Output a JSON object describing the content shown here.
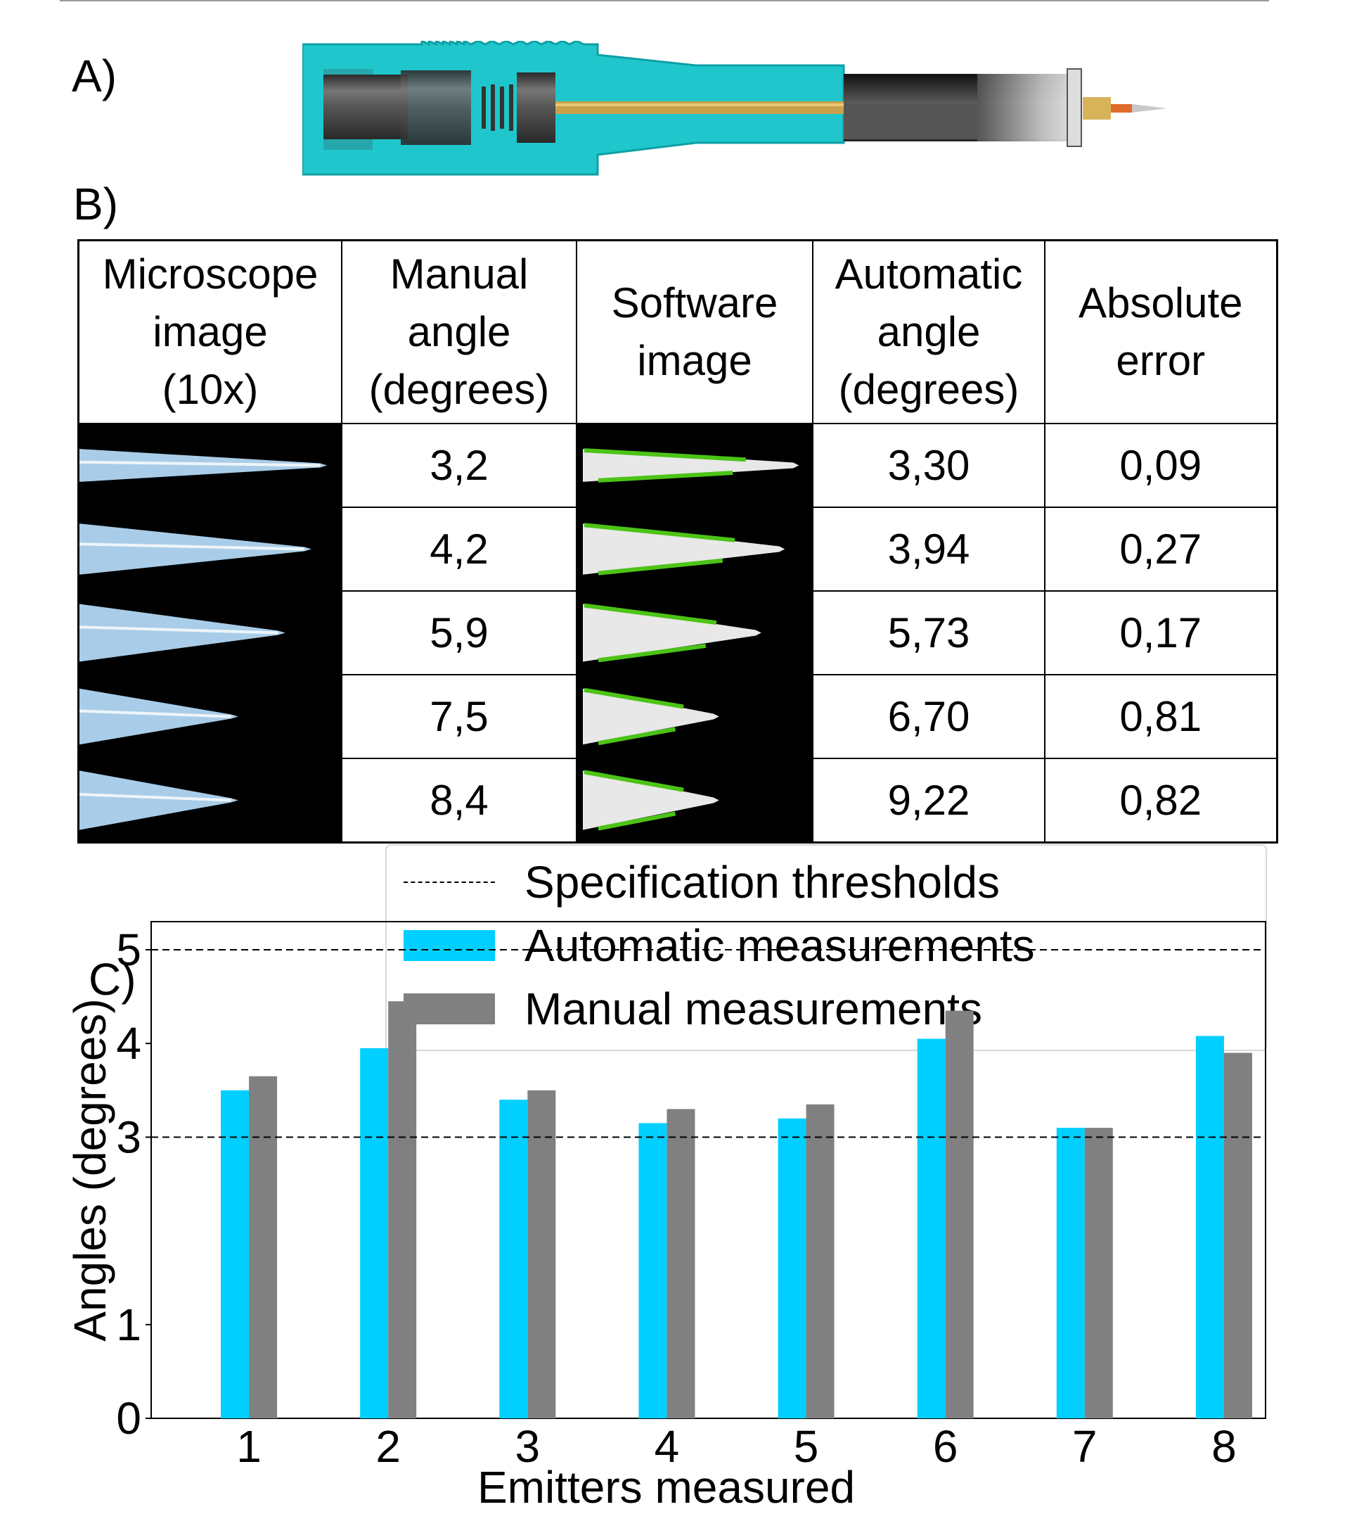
{
  "panels": {
    "a_label": "A)",
    "b_label": "B)",
    "c_label": "C)"
  },
  "table": {
    "headers": [
      [
        "Microscope",
        "image",
        "(10x)"
      ],
      [
        "Manual",
        "angle",
        "(degrees)"
      ],
      [
        "Software",
        "image"
      ],
      [
        "Automatic",
        "angle",
        "(degrees)"
      ],
      [
        "Absolute",
        "error"
      ]
    ],
    "rows": [
      {
        "manual": "3,2",
        "automatic": "3,30",
        "error": "0,09"
      },
      {
        "manual": "4,2",
        "automatic": "3,94",
        "error": "0,27"
      },
      {
        "manual": "5,9",
        "automatic": "5,73",
        "error": "0,17"
      },
      {
        "manual": "7,5",
        "automatic": "6,70",
        "error": "0,81"
      },
      {
        "manual": "8,4",
        "automatic": "9,22",
        "error": "0,82"
      }
    ]
  },
  "chart_data": {
    "type": "bar",
    "categories": [
      "1",
      "2",
      "3",
      "4",
      "5",
      "6",
      "7",
      "8"
    ],
    "series": [
      {
        "name": "Automatic measurements",
        "color": "#00cfff",
        "values": [
          3.5,
          3.95,
          3.4,
          3.15,
          3.2,
          4.05,
          3.1,
          4.08
        ]
      },
      {
        "name": "Manual measurements",
        "color": "#808080",
        "values": [
          3.65,
          4.45,
          3.5,
          3.3,
          3.35,
          4.35,
          3.1,
          3.9
        ]
      }
    ],
    "thresholds": {
      "name": "Specification thresholds",
      "values": [
        3,
        5
      ],
      "style": "dashed",
      "color": "#000000"
    },
    "xlabel": "Emitters measured",
    "ylabel": "Angles (degrees)",
    "yticks": [
      "0",
      "1",
      "3",
      "4",
      "5"
    ],
    "ylim": [
      0,
      5.3
    ],
    "legend_position": "top",
    "grid": false
  }
}
